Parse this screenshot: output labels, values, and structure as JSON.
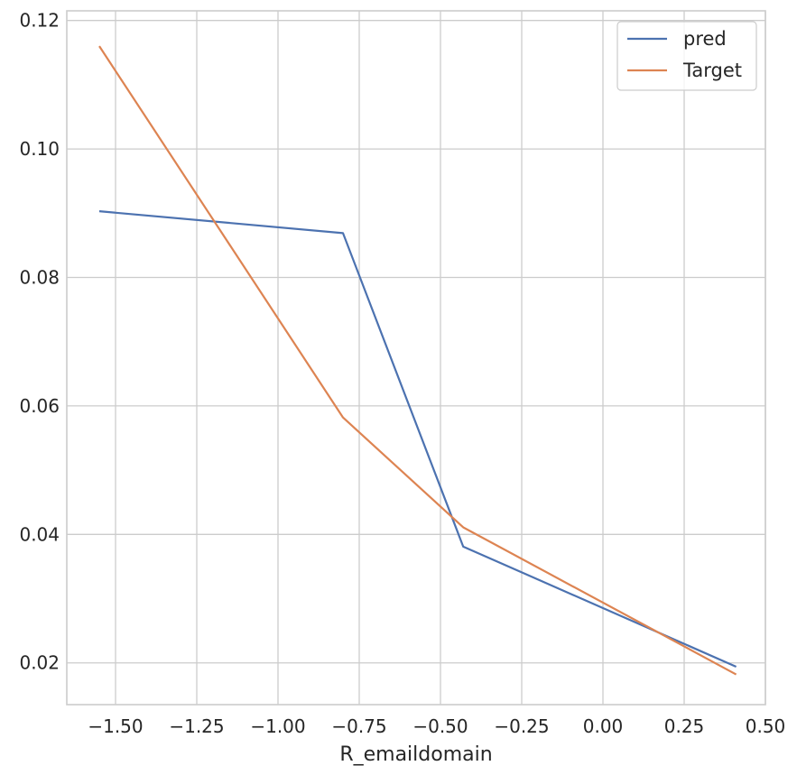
{
  "chart_data": {
    "type": "line",
    "title": "",
    "xlabel": "R_emaildomain",
    "ylabel": "",
    "xlim": [
      -1.65,
      0.5
    ],
    "ylim": [
      0.0135,
      0.1215
    ],
    "xticks": [
      -1.5,
      -1.25,
      -1.0,
      -0.75,
      -0.5,
      -0.25,
      0.0,
      0.25,
      0.5
    ],
    "xtick_labels": [
      "−1.50",
      "−1.25",
      "−1.00",
      "−0.75",
      "−0.50",
      "−0.25",
      "0.00",
      "0.25",
      "0.50"
    ],
    "yticks": [
      0.02,
      0.04,
      0.06,
      0.08,
      0.1,
      0.12
    ],
    "ytick_labels": [
      "0.02",
      "0.04",
      "0.06",
      "0.08",
      "0.10",
      "0.12"
    ],
    "grid": true,
    "legend_position": "top-right",
    "series": [
      {
        "name": "pred",
        "color": "#4c72b0",
        "x": [
          -1.55,
          -0.8,
          -0.43,
          0.41
        ],
        "y": [
          0.0903,
          0.0869,
          0.0381,
          0.0194
        ]
      },
      {
        "name": "Target",
        "color": "#dd8452",
        "x": [
          -1.55,
          -0.8,
          -0.43,
          0.41
        ],
        "y": [
          0.116,
          0.0582,
          0.0411,
          0.0182
        ]
      }
    ]
  }
}
